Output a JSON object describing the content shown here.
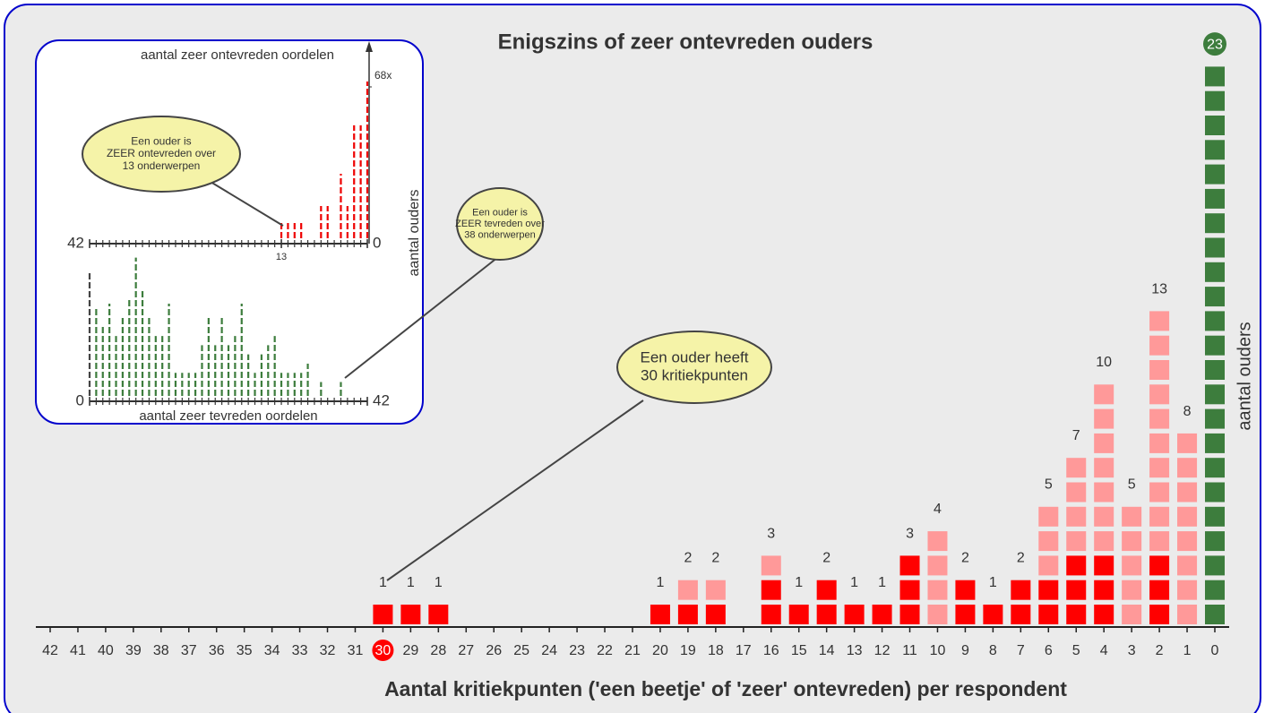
{
  "chart_data": [
    {
      "type": "bar",
      "title": "Enigszins of zeer ontevreden ouders",
      "xlabel": "Aantal kritiekpunten ('een beetje' of 'zeer' ontevreden) per respondent",
      "ylabel": "aantal ouders",
      "categories": [
        "42",
        "41",
        "40",
        "39",
        "38",
        "37",
        "36",
        "35",
        "34",
        "33",
        "32",
        "31",
        "30",
        "29",
        "28",
        "27",
        "26",
        "25",
        "24",
        "23",
        "22",
        "21",
        "20",
        "19",
        "18",
        "17",
        "16",
        "15",
        "14",
        "13",
        "12",
        "11",
        "10",
        "9",
        "8",
        "7",
        "6",
        "5",
        "4",
        "3",
        "2",
        "1",
        "0"
      ],
      "series": [
        {
          "color": "#ff0000",
          "values": [
            0,
            0,
            0,
            0,
            0,
            0,
            0,
            0,
            0,
            0,
            0,
            0,
            1,
            1,
            1,
            0,
            0,
            0,
            0,
            0,
            0,
            0,
            1,
            1,
            1,
            0,
            2,
            1,
            2,
            1,
            1,
            3,
            0,
            2,
            1,
            2,
            2,
            3,
            3,
            0,
            3,
            0,
            0
          ]
        },
        {
          "color": "#ff9999",
          "values": [
            0,
            0,
            0,
            0,
            0,
            0,
            0,
            0,
            0,
            0,
            0,
            0,
            0,
            0,
            0,
            0,
            0,
            0,
            0,
            0,
            0,
            0,
            0,
            1,
            1,
            0,
            1,
            0,
            0,
            0,
            0,
            0,
            4,
            0,
            0,
            0,
            3,
            4,
            7,
            5,
            10,
            8,
            0
          ]
        },
        {
          "color": "#3d7d3d",
          "values": [
            0,
            0,
            0,
            0,
            0,
            0,
            0,
            0,
            0,
            0,
            0,
            0,
            0,
            0,
            0,
            0,
            0,
            0,
            0,
            0,
            0,
            0,
            0,
            0,
            0,
            0,
            0,
            0,
            0,
            0,
            0,
            0,
            0,
            0,
            0,
            0,
            0,
            0,
            0,
            0,
            0,
            0,
            23
          ]
        }
      ],
      "totals": [
        null,
        null,
        null,
        null,
        null,
        null,
        null,
        null,
        null,
        null,
        null,
        null,
        1,
        1,
        1,
        null,
        null,
        null,
        null,
        null,
        null,
        null,
        1,
        2,
        2,
        null,
        3,
        1,
        2,
        1,
        1,
        3,
        4,
        2,
        1,
        2,
        5,
        7,
        10,
        5,
        13,
        8,
        23
      ],
      "ylim": [
        0,
        25
      ],
      "highlight": "30",
      "highlight_color": "#ff0000",
      "annotations": [
        {
          "lines": [
            "Een ouder heeft",
            "30 kritiekpunten"
          ]
        },
        {
          "lines": [
            "Een ouder is",
            "ZEER tevreden over",
            "38 onderwerpen"
          ]
        },
        {
          "lines": [
            "Een ouder is",
            "ZEER ontevreden over",
            "13 onderwerpen"
          ]
        }
      ]
    },
    {
      "type": "needle",
      "title": "aantal zeer ontevreden oordelen",
      "ylabel": "aantal ouders",
      "color": "#ee0000",
      "x": [
        0,
        1,
        2,
        3,
        4,
        5,
        6,
        7,
        8,
        9,
        10,
        11,
        12,
        13,
        14,
        15,
        16,
        17,
        18,
        19,
        20,
        21,
        22,
        23,
        24,
        25,
        26,
        27,
        28,
        29,
        30,
        31,
        32,
        33,
        34,
        35,
        36,
        37,
        38,
        39,
        40,
        41,
        42
      ],
      "values": [
        68,
        49,
        49,
        14,
        28,
        0,
        14,
        14,
        0,
        0,
        7,
        7,
        7,
        7,
        0,
        0,
        0,
        0,
        0,
        0,
        0,
        0,
        0,
        0,
        0,
        0,
        0,
        0,
        0,
        0,
        0,
        0,
        0,
        0,
        0,
        0,
        0,
        0,
        0,
        0,
        0,
        0,
        0
      ],
      "xlim": [
        42,
        0
      ],
      "xticks": [
        42,
        13,
        0
      ],
      "ylim": [
        0,
        68
      ],
      "yticks": [
        {
          "value": 68,
          "label": "68x"
        }
      ]
    },
    {
      "type": "needle",
      "xlabel": "aantal zeer tevreden oordelen",
      "color": "#3d7d3d",
      "x": [
        0,
        1,
        2,
        3,
        4,
        5,
        6,
        7,
        8,
        9,
        10,
        11,
        12,
        13,
        14,
        15,
        16,
        17,
        18,
        19,
        20,
        21,
        22,
        23,
        24,
        25,
        26,
        27,
        28,
        29,
        30,
        31,
        32,
        33,
        34,
        35,
        36,
        37,
        38,
        39,
        40,
        41,
        42
      ],
      "values": [
        54,
        38,
        30,
        40,
        26,
        34,
        42,
        60,
        46,
        34,
        26,
        26,
        40,
        10,
        10,
        10,
        10,
        22,
        34,
        22,
        34,
        22,
        26,
        40,
        18,
        10,
        18,
        22,
        26,
        10,
        10,
        10,
        10,
        14,
        0,
        6,
        0,
        0,
        6,
        0,
        0,
        0,
        0
      ],
      "xlim": [
        0,
        42
      ],
      "xticks": [
        0,
        42
      ],
      "ylim": [
        0,
        68
      ]
    }
  ]
}
